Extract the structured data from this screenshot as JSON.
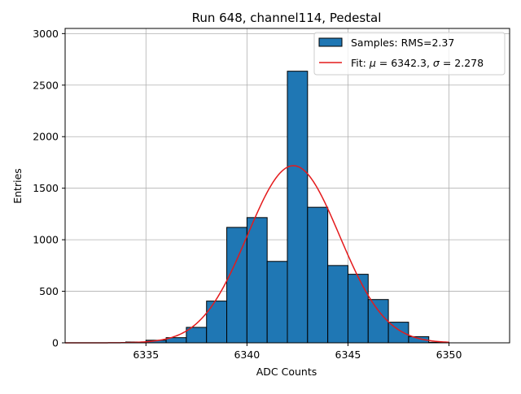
{
  "chart_data": {
    "type": "bar",
    "title": "Run 648, channel114, Pedestal",
    "xlabel": "ADC Counts",
    "ylabel": "Entries",
    "xlim": [
      6331,
      6353
    ],
    "ylim": [
      0,
      3050
    ],
    "grid": true,
    "legend_position": "top-right",
    "x_ticks": [
      6335,
      6340,
      6345,
      6350
    ],
    "y_ticks": [
      0,
      500,
      1000,
      1500,
      2000,
      2500,
      3000
    ],
    "bin_width": 1,
    "bins": [
      {
        "start": 6334,
        "value": 8
      },
      {
        "start": 6335,
        "value": 25
      },
      {
        "start": 6336,
        "value": 50
      },
      {
        "start": 6337,
        "value": 150
      },
      {
        "start": 6338,
        "value": 405
      },
      {
        "start": 6339,
        "value": 1120
      },
      {
        "start": 6340,
        "value": 1215
      },
      {
        "start": 6341,
        "value": 790
      },
      {
        "start": 6342,
        "value": 2635
      },
      {
        "start": 6343,
        "value": 1315
      },
      {
        "start": 6344,
        "value": 750
      },
      {
        "start": 6345,
        "value": 665
      },
      {
        "start": 6346,
        "value": 420
      },
      {
        "start": 6347,
        "value": 200
      },
      {
        "start": 6348,
        "value": 60
      },
      {
        "start": 6349,
        "value": 5
      }
    ],
    "series": [
      {
        "name": "Samples: RMS=2.37",
        "kind": "histogram",
        "color": "#1f77b4"
      },
      {
        "name": "Fit: μ = 6342.3, σ = 2.278",
        "kind": "line",
        "color": "#e41a1c",
        "mu": 6342.3,
        "sigma": 2.278,
        "x_range": [
          6331,
          6350
        ]
      }
    ],
    "legend": [
      {
        "prefix": "Samples: RMS=2.37",
        "kind": "patch",
        "color": "#1f77b4"
      },
      {
        "prefix": "Fit: ",
        "mu_symbol": "μ",
        "mu_value": " = 6342.3, ",
        "sigma_symbol": "σ",
        "sigma_value": " = 2.278",
        "kind": "line",
        "color": "#e41a1c"
      }
    ]
  }
}
